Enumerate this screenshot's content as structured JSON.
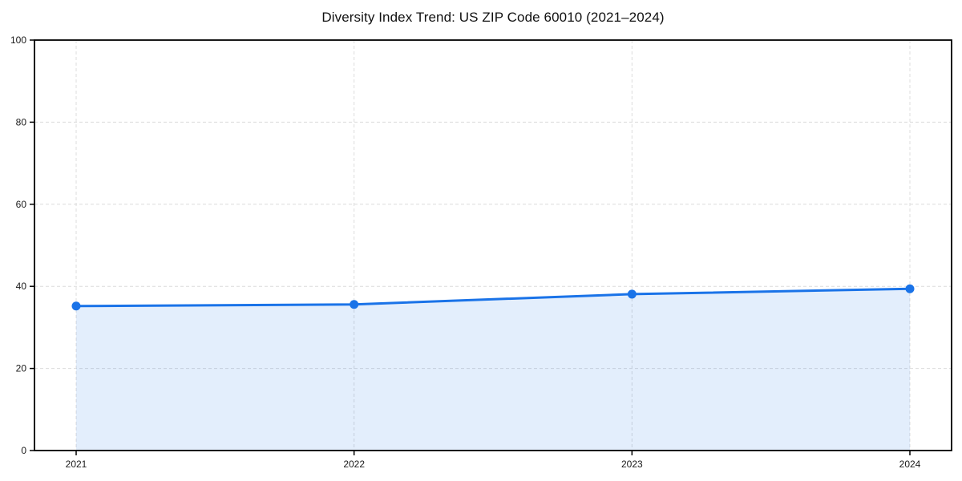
{
  "chart_data": {
    "type": "area",
    "title": "Diversity Index Trend: US ZIP Code 60010 (2021–2024)",
    "x": [
      2021,
      2022,
      2023,
      2024
    ],
    "x_tick_labels": [
      "2021",
      "2022",
      "2023",
      "2024"
    ],
    "series": [
      {
        "name": "Diversity Index",
        "values": [
          35.2,
          35.6,
          38.1,
          39.4
        ]
      }
    ],
    "xlabel": "",
    "ylabel": "",
    "ylim": [
      0,
      100
    ],
    "yticks": [
      0,
      20,
      40,
      60,
      80,
      100
    ],
    "grid": "dashed",
    "legend_position": "none",
    "marker": "circle",
    "colors": {
      "line": "#1a73e8",
      "marker": "#1a73e8",
      "fill": "rgba(26,115,232,0.12)",
      "grid": "#dcdcdc",
      "spine": "#000000",
      "background": "#ffffff",
      "text": "#1a1a1a"
    }
  }
}
